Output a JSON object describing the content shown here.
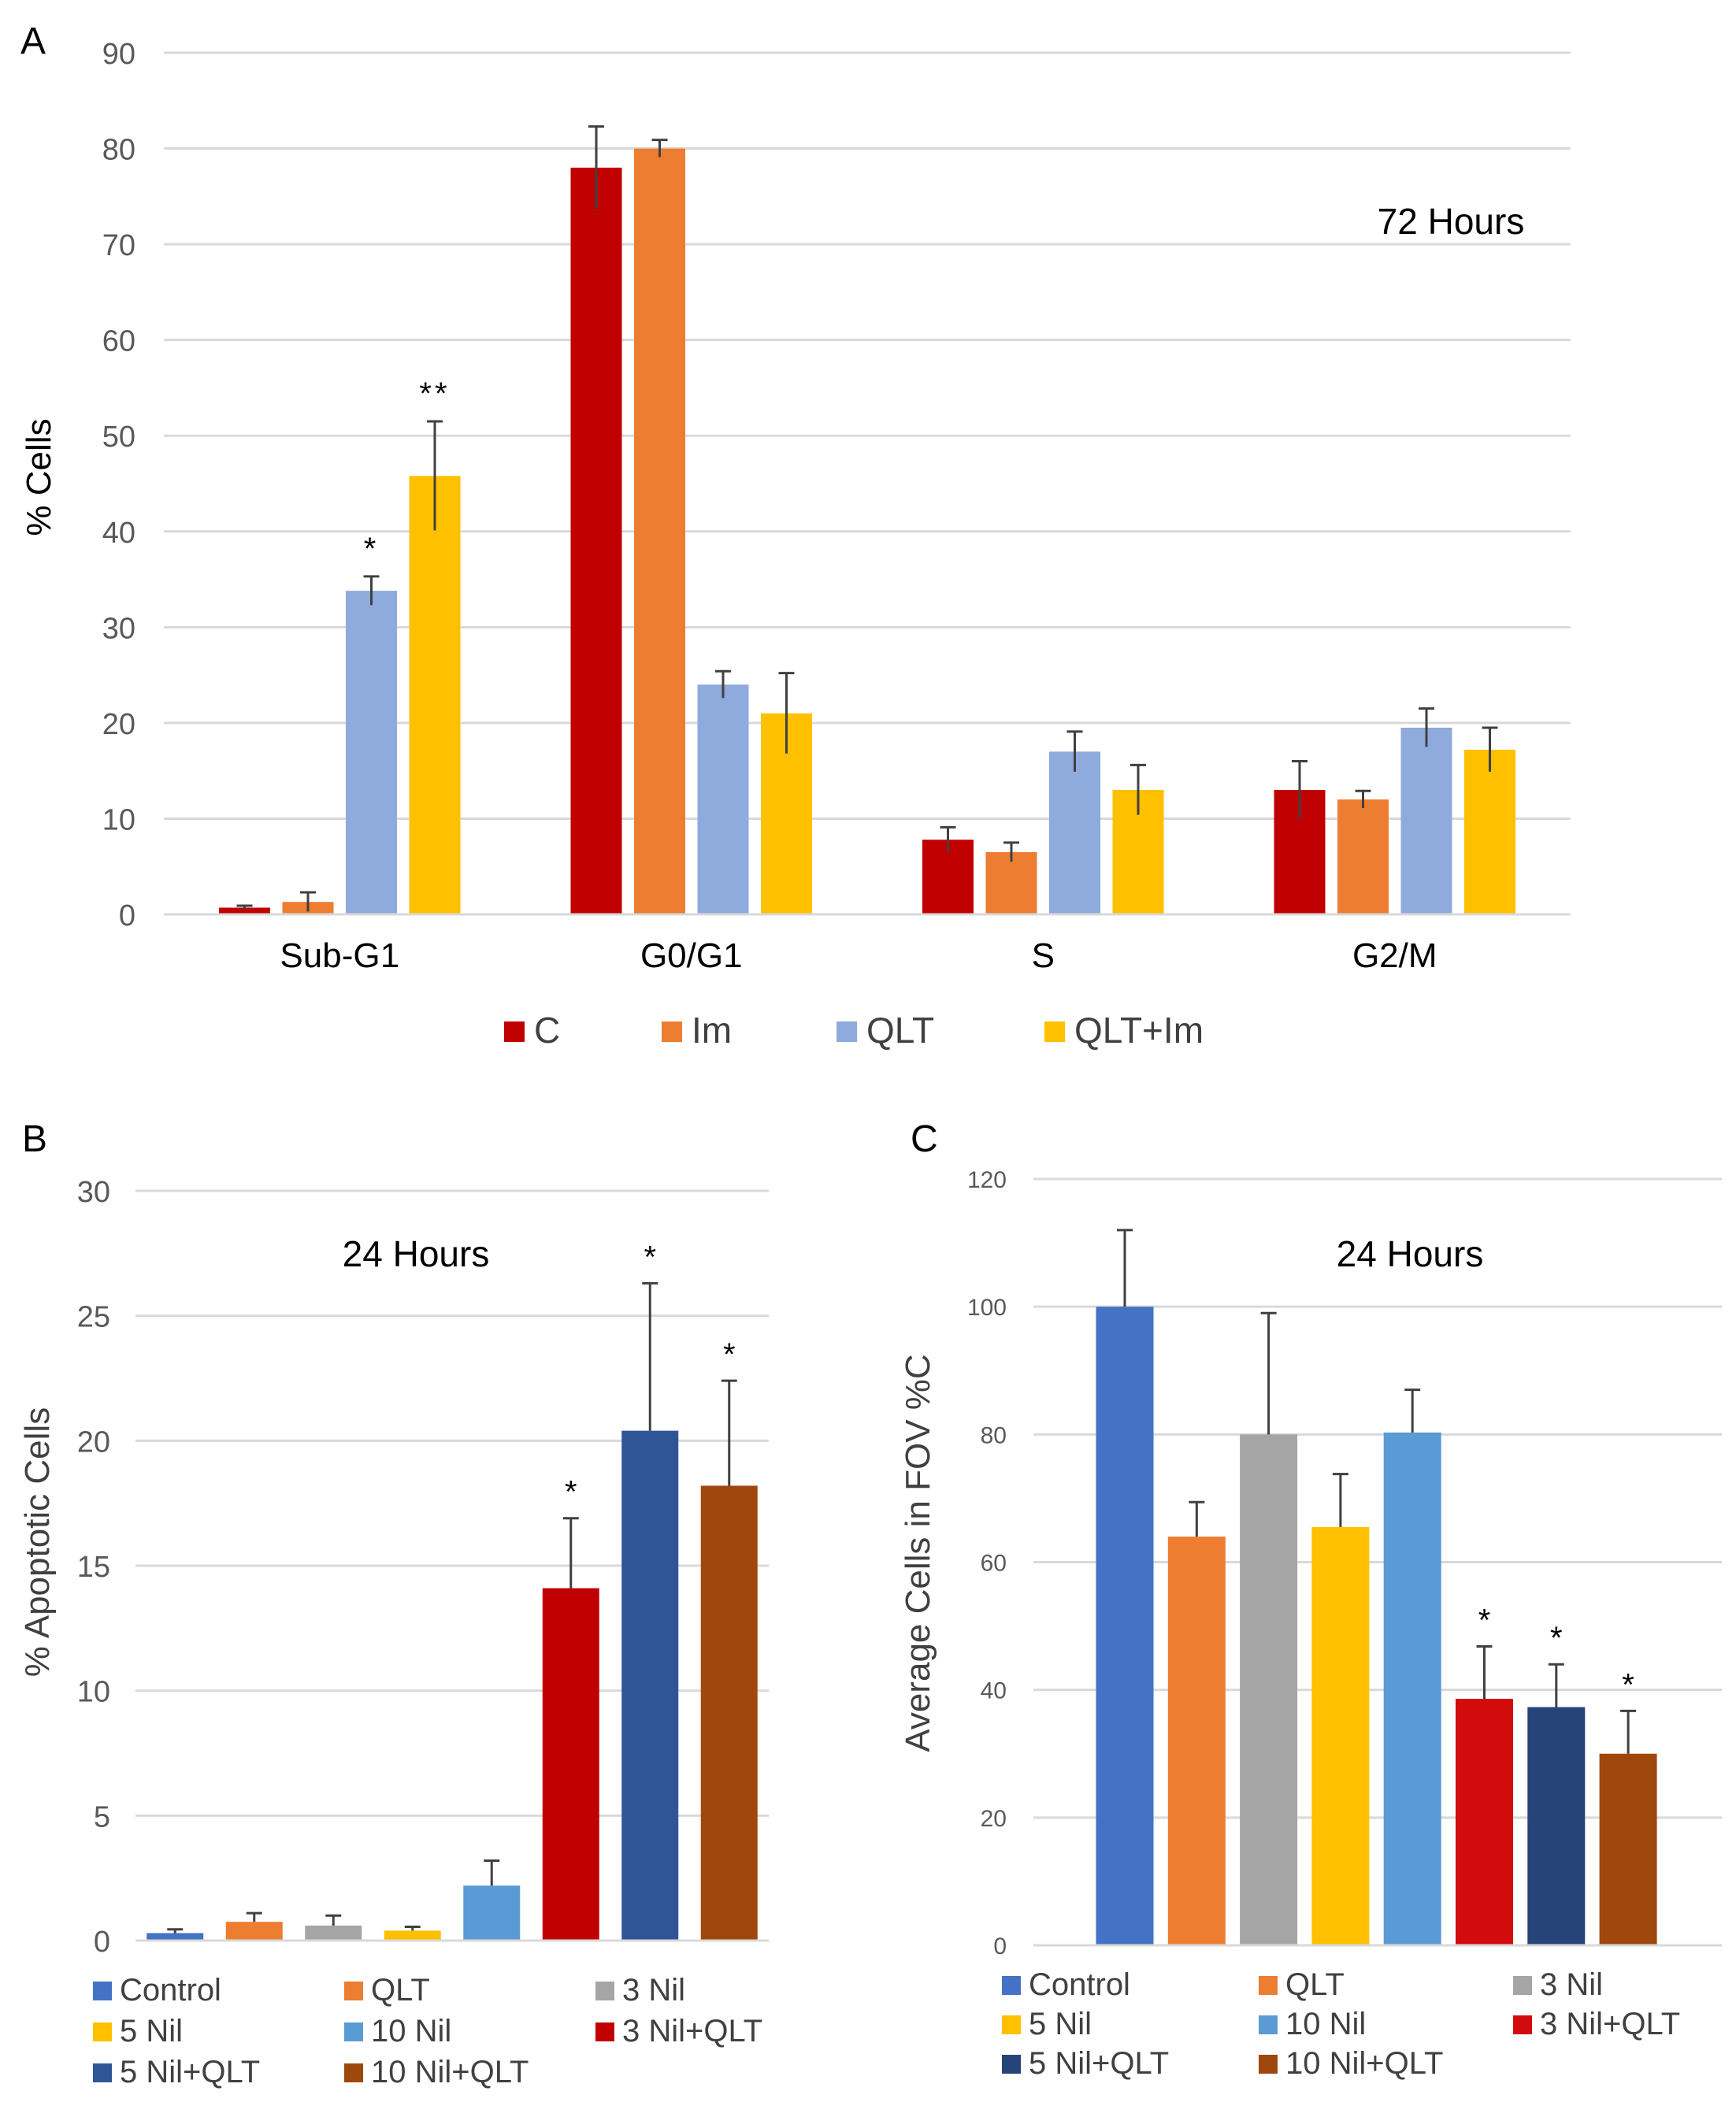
{
  "colors": {
    "C": "#c00000",
    "Im": "#ed7d31",
    "QLT": "#8faadc",
    "QLTIm": "#ffc000",
    "control": "#4472c4",
    "qlt_b": "#ed7d31",
    "nil3": "#a5a5a5",
    "nil5": "#ffc000",
    "nil10": "#5b9bd5",
    "nil3qlt": "#c00000",
    "nil5qlt": "#2f5597",
    "nil10qlt": "#9e480e",
    "nil3qlt_c": "#d20c0c",
    "nil5qlt_c": "#264478",
    "grid": "#d9d9d9",
    "text": "#000000",
    "tick": "#595959",
    "err": "#404040"
  },
  "chart_data": [
    {
      "panel": "A",
      "type": "bar",
      "annotation": "72 Hours",
      "ylabel": "% Cells",
      "xlabel": "",
      "ylim": [
        0,
        90
      ],
      "yticks": [
        "0",
        "10",
        "20",
        "30",
        "40",
        "50",
        "60",
        "70",
        "80",
        "90"
      ],
      "categories": [
        "Sub-G1",
        "G0/G1",
        "S",
        "G2/M"
      ],
      "series": [
        {
          "name": "C",
          "color_key": "C",
          "values": [
            0.7,
            78,
            7.8,
            13
          ],
          "errors": [
            0.2,
            4.3,
            1.3,
            3
          ],
          "stars": [
            "",
            "",
            "",
            ""
          ]
        },
        {
          "name": "Im",
          "color_key": "Im",
          "values": [
            1.3,
            80,
            6.5,
            12
          ],
          "errors": [
            1.0,
            0.9,
            1.0,
            0.9
          ],
          "stars": [
            "",
            "",
            "",
            ""
          ]
        },
        {
          "name": "QLT",
          "color_key": "QLT",
          "values": [
            33.8,
            24,
            17,
            19.5
          ],
          "errors": [
            1.5,
            1.4,
            2.1,
            2
          ],
          "stars": [
            "*",
            "",
            "",
            ""
          ]
        },
        {
          "name": "QLT+Im",
          "color_key": "QLTIm",
          "values": [
            45.8,
            21,
            13,
            17.2
          ],
          "errors": [
            5.7,
            4.2,
            2.6,
            2.3
          ],
          "stars": [
            "**",
            "",
            "",
            ""
          ]
        }
      ],
      "legend": [
        "C",
        "Im",
        "QLT",
        "QLT+Im"
      ],
      "legend_position": "bottom",
      "grid": true
    },
    {
      "panel": "B",
      "type": "bar",
      "annotation": "24 Hours",
      "ylabel": "% Apoptotic Cells",
      "xlabel": "",
      "ylim": [
        0,
        30
      ],
      "yticks": [
        "0",
        "5",
        "10",
        "15",
        "20",
        "25",
        "30"
      ],
      "categories": [
        "Control",
        "QLT",
        "3 Nil",
        "5 Nil",
        "10 Nil",
        "3 Nil+QLT",
        "5 Nil+QLT",
        "10 Nil+QLT"
      ],
      "color_keys": [
        "control",
        "qlt_b",
        "nil3",
        "nil5",
        "nil10",
        "nil3qlt",
        "nil5qlt",
        "nil10qlt"
      ],
      "values": [
        0.3,
        0.75,
        0.6,
        0.4,
        2.2,
        14.1,
        20.4,
        18.2
      ],
      "errors": [
        0.15,
        0.35,
        0.4,
        0.15,
        1.0,
        2.8,
        5.9,
        4.2
      ],
      "stars": [
        "",
        "",
        "",
        "",
        "",
        "*",
        "*",
        "*"
      ],
      "legend": [
        "Control",
        "QLT",
        "3 Nil",
        "5 Nil",
        "10 Nil",
        "3 Nil+QLT",
        "5 Nil+QLT",
        "10 Nil+QLT"
      ],
      "legend_position": "bottom",
      "grid": true
    },
    {
      "panel": "C",
      "type": "bar",
      "annotation": "24 Hours",
      "ylabel": "Average Cells in FOV %C",
      "xlabel": "",
      "ylim": [
        0,
        120
      ],
      "yticks": [
        "0",
        "20",
        "40",
        "60",
        "80",
        "100",
        "120"
      ],
      "categories": [
        "Control",
        "QLT",
        "3 Nil",
        "5 Nil",
        "10 Nil",
        "3 Nil+QLT",
        "5 Nil+QLT",
        "10 Nil+QLT"
      ],
      "color_keys": [
        "control",
        "qlt_b",
        "nil3",
        "nil5",
        "nil10",
        "nil3qlt_c",
        "nil5qlt_c",
        "nil10qlt"
      ],
      "values": [
        100,
        64,
        80,
        65.5,
        80.3,
        38.6,
        37.3,
        30
      ],
      "errors": [
        12,
        5.4,
        19,
        8.3,
        6.7,
        8.2,
        6.7,
        6.7
      ],
      "stars": [
        "",
        "",
        "",
        "",
        "",
        "*",
        "*",
        "*"
      ],
      "legend": [
        "Control",
        "QLT",
        "3 Nil",
        "5 Nil",
        "10 Nil",
        "3 Nil+QLT",
        "5 Nil+QLT",
        "10 Nil+QLT"
      ],
      "legend_position": "bottom",
      "grid": true
    }
  ]
}
